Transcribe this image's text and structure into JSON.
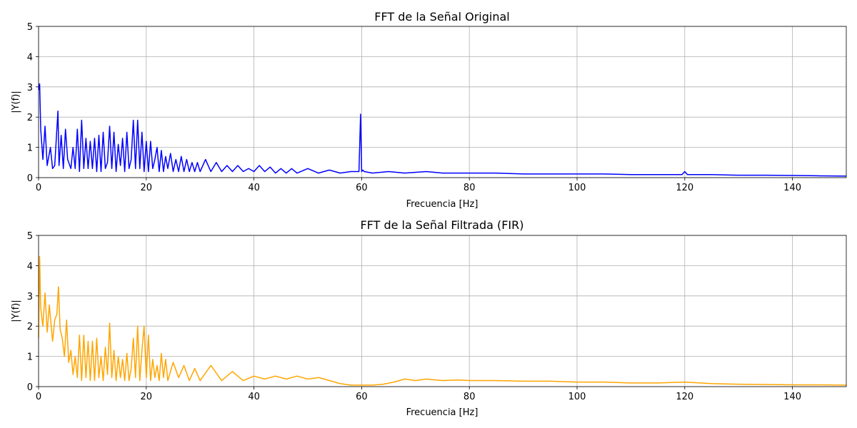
{
  "chart_data": [
    {
      "type": "line",
      "title": "FFT de la Señal Original",
      "xlabel": "Frecuencia [Hz]",
      "ylabel": "|Y(f)|",
      "xlim": [
        0,
        150
      ],
      "ylim": [
        0,
        5
      ],
      "xticks": [
        "0",
        "20",
        "40",
        "60",
        "80",
        "100",
        "120",
        "140"
      ],
      "yticks": [
        "0",
        "1",
        "2",
        "3",
        "4",
        "5"
      ],
      "grid": true,
      "series": [
        {
          "color": "#0000ff",
          "x": [
            0,
            0.2,
            0.4,
            0.8,
            1.2,
            1.6,
            2.2,
            2.6,
            3.0,
            3.6,
            3.8,
            4.2,
            4.6,
            5.0,
            5.4,
            6.0,
            6.4,
            6.8,
            7.2,
            7.6,
            8.0,
            8.4,
            8.8,
            9.2,
            9.6,
            10.0,
            10.4,
            10.8,
            11.2,
            11.6,
            12.0,
            12.4,
            12.8,
            13.2,
            13.6,
            14.0,
            14.4,
            14.8,
            15.2,
            15.6,
            16.0,
            16.4,
            16.8,
            17.2,
            17.6,
            18.0,
            18.4,
            18.8,
            19.2,
            19.6,
            20.0,
            20.4,
            20.8,
            21.2,
            21.6,
            22.0,
            22.4,
            22.8,
            23.2,
            23.6,
            24.0,
            24.5,
            25.0,
            25.5,
            26.0,
            26.5,
            27.0,
            27.5,
            28.0,
            28.5,
            29.0,
            29.5,
            30.0,
            31.0,
            32.0,
            33.0,
            34.0,
            35.0,
            36.0,
            37.0,
            38.0,
            39.0,
            40.0,
            41.0,
            42.0,
            43.0,
            44.0,
            45.0,
            46.0,
            47.0,
            48.0,
            50.0,
            52.0,
            54.0,
            56.0,
            58.0,
            59.5,
            59.8,
            60.0,
            60.2,
            60.5,
            62.0,
            65.0,
            68.0,
            72.0,
            75.0,
            80.0,
            85.0,
            90.0,
            95.0,
            100.0,
            105.0,
            110.0,
            115.0,
            119.5,
            120.0,
            120.5,
            125.0,
            130.0,
            135.0,
            140.0,
            145.0,
            150.0
          ],
          "y": [
            2.9,
            3.1,
            1.6,
            0.6,
            1.7,
            0.4,
            1.0,
            0.3,
            0.4,
            2.2,
            0.4,
            1.4,
            0.3,
            1.6,
            0.6,
            0.3,
            1.0,
            0.3,
            1.6,
            0.2,
            1.9,
            0.3,
            1.3,
            0.3,
            1.2,
            0.3,
            1.3,
            0.2,
            1.4,
            0.2,
            1.5,
            0.3,
            0.5,
            1.7,
            0.3,
            1.5,
            0.2,
            1.1,
            0.4,
            1.3,
            0.2,
            1.5,
            0.3,
            0.6,
            1.9,
            0.3,
            1.9,
            0.3,
            1.5,
            0.2,
            1.2,
            0.2,
            1.2,
            0.3,
            0.6,
            1.0,
            0.2,
            0.9,
            0.2,
            0.7,
            0.3,
            0.8,
            0.2,
            0.6,
            0.2,
            0.7,
            0.2,
            0.6,
            0.2,
            0.5,
            0.2,
            0.5,
            0.2,
            0.6,
            0.2,
            0.5,
            0.2,
            0.4,
            0.2,
            0.4,
            0.2,
            0.3,
            0.2,
            0.4,
            0.2,
            0.35,
            0.15,
            0.3,
            0.15,
            0.3,
            0.15,
            0.3,
            0.15,
            0.25,
            0.15,
            0.2,
            0.2,
            2.1,
            0.2,
            0.25,
            0.2,
            0.15,
            0.2,
            0.15,
            0.2,
            0.15,
            0.15,
            0.15,
            0.12,
            0.12,
            0.12,
            0.12,
            0.1,
            0.1,
            0.1,
            0.2,
            0.1,
            0.1,
            0.08,
            0.08,
            0.07,
            0.06,
            0.05
          ]
        }
      ]
    },
    {
      "type": "line",
      "title": "FFT de la Señal Filtrada (FIR)",
      "xlabel": "Frecuencia [Hz]",
      "ylabel": "|Y(f)|",
      "xlim": [
        0,
        150
      ],
      "ylim": [
        0,
        5
      ],
      "xticks": [
        "0",
        "20",
        "40",
        "60",
        "80",
        "100",
        "120",
        "140"
      ],
      "yticks": [
        "0",
        "1",
        "2",
        "3",
        "4",
        "5"
      ],
      "grid": true,
      "series": [
        {
          "color": "#ffa500",
          "x": [
            0,
            0.2,
            0.4,
            0.8,
            1.2,
            1.6,
            2.0,
            2.6,
            3.0,
            3.4,
            3.7,
            4.0,
            4.4,
            4.8,
            5.2,
            5.6,
            6.0,
            6.4,
            6.8,
            7.2,
            7.6,
            8.0,
            8.4,
            8.8,
            9.2,
            9.6,
            10.0,
            10.4,
            10.8,
            11.2,
            11.6,
            12.0,
            12.4,
            12.8,
            13.2,
            13.6,
            14.0,
            14.4,
            14.8,
            15.2,
            15.6,
            16.0,
            16.4,
            16.8,
            17.2,
            17.6,
            18.0,
            18.4,
            18.8,
            19.2,
            19.6,
            20.0,
            20.4,
            20.8,
            21.2,
            21.6,
            22.0,
            22.4,
            22.8,
            23.2,
            23.6,
            24.0,
            25.0,
            26.0,
            27.0,
            28.0,
            29.0,
            30.0,
            32.0,
            34.0,
            36.0,
            38.0,
            40.0,
            42.0,
            44.0,
            46.0,
            48.0,
            50.0,
            52.0,
            54.0,
            56.0,
            58.0,
            60.0,
            62.0,
            64.0,
            66.0,
            68.0,
            70.0,
            72.0,
            75.0,
            78.0,
            80.0,
            85.0,
            90.0,
            95.0,
            100.0,
            105.0,
            110.0,
            115.0,
            120.0,
            125.0,
            130.0,
            135.0,
            140.0,
            145.0,
            150.0
          ],
          "y": [
            1.6,
            4.3,
            2.6,
            2.0,
            3.1,
            1.8,
            2.7,
            1.5,
            2.2,
            2.4,
            3.3,
            1.9,
            1.6,
            1.0,
            2.2,
            0.8,
            1.2,
            0.4,
            1.0,
            0.3,
            1.7,
            0.2,
            1.7,
            0.3,
            1.5,
            0.2,
            1.5,
            0.2,
            1.6,
            0.3,
            1.0,
            0.2,
            1.3,
            0.4,
            2.1,
            0.3,
            1.2,
            0.2,
            1.0,
            0.3,
            0.9,
            0.2,
            1.1,
            0.2,
            0.6,
            1.6,
            0.3,
            2.0,
            0.2,
            1.2,
            2.0,
            0.3,
            1.7,
            0.2,
            0.9,
            0.3,
            0.7,
            0.2,
            1.1,
            0.3,
            0.9,
            0.2,
            0.8,
            0.3,
            0.7,
            0.2,
            0.6,
            0.2,
            0.7,
            0.2,
            0.5,
            0.2,
            0.35,
            0.25,
            0.35,
            0.25,
            0.35,
            0.25,
            0.3,
            0.2,
            0.1,
            0.05,
            0.05,
            0.05,
            0.08,
            0.15,
            0.25,
            0.2,
            0.25,
            0.2,
            0.22,
            0.2,
            0.2,
            0.18,
            0.18,
            0.15,
            0.15,
            0.12,
            0.12,
            0.15,
            0.1,
            0.08,
            0.07,
            0.06,
            0.06,
            0.05
          ]
        }
      ]
    }
  ]
}
